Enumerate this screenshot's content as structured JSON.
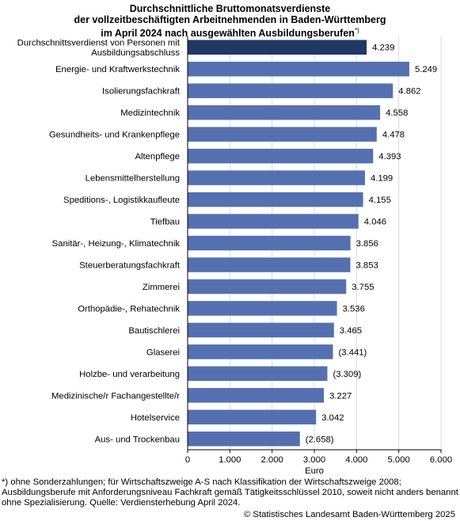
{
  "title": {
    "line1": "Durchschnittliche Bruttomonatsverdienste",
    "line2": "der vollzeitbeschäftigten Arbeitnehmenden in Baden-Württemberg",
    "line3": "im April 2024 nach ausgewählten Ausbildungsberufen",
    "marker": "*)"
  },
  "chart_data": {
    "type": "bar",
    "orientation": "horizontal",
    "categories": [
      [
        "Durchschnittsverdienst von Personen mit",
        "Ausbildungsabschluss"
      ],
      [
        "Energie- und Kraftwerkstechnik"
      ],
      [
        "Isolierungsfachkraft"
      ],
      [
        "Medizintechnik"
      ],
      [
        "Gesundheits- und Krankenpflege"
      ],
      [
        "Altenpflege"
      ],
      [
        "Lebensmittelherstellung"
      ],
      [
        "Speditions-, Logistikkaufleute"
      ],
      [
        "Tiefbau"
      ],
      [
        "Sanitär-, Heizung-, Klimatechnik"
      ],
      [
        "Steuerberatungsfachkraft"
      ],
      [
        "Zimmerei"
      ],
      [
        "Orthopädie-, Rehatechnik"
      ],
      [
        "Bautischlerei"
      ],
      [
        "Glaserei"
      ],
      [
        "Holzbe- und verarbeitung"
      ],
      [
        "Medizinische/r Fachangestellte/r"
      ],
      [
        "Hotelservice"
      ],
      [
        "Aus- und Trockenbau"
      ]
    ],
    "values": [
      4239,
      5249,
      4862,
      4558,
      4478,
      4393,
      4199,
      4155,
      4046,
      3856,
      3853,
      3755,
      3536,
      3465,
      3441,
      3309,
      3227,
      3042,
      2658
    ],
    "value_labels": [
      "4.239",
      "5.249",
      "4.862",
      "4.558",
      "4.478",
      "4.393",
      "4.199",
      "4.155",
      "4.046",
      "3.856",
      "3.853",
      "3.755",
      "3.536",
      "3.465",
      "(3.441)",
      "(3.309)",
      "3.227",
      "3.042",
      "(2.658)"
    ],
    "highlight_index": 0,
    "xlim": [
      0,
      6000
    ],
    "xticks": [
      0,
      1000,
      2000,
      3000,
      4000,
      5000,
      6000
    ],
    "xtick_labels": [
      "0",
      "1.000",
      "2.000",
      "3.000",
      "4.000",
      "5.000",
      "6.000"
    ],
    "xlabel": "Euro",
    "grid": "vertical",
    "colors": {
      "highlight": "#1f3864",
      "bar": "#5470b0",
      "grid": "#d9d9d9",
      "axis": "#000000"
    }
  },
  "footnote": "*) ohne Sonderzahlungen; für Wirtschaftszweige A-S nach Klassifikation der Wirtschaftszweige 2008; Ausbildungsberufe mit Anforderungsniveau Fachkraft gemäß Tätigkeitsschlüssel 2010, soweit nicht anders benannt ohne Spezialisierung. Quelle: Verdiensterhebung April 2024.",
  "copyright": "© Statistisches Landesamt Baden-Württemberg 2025"
}
